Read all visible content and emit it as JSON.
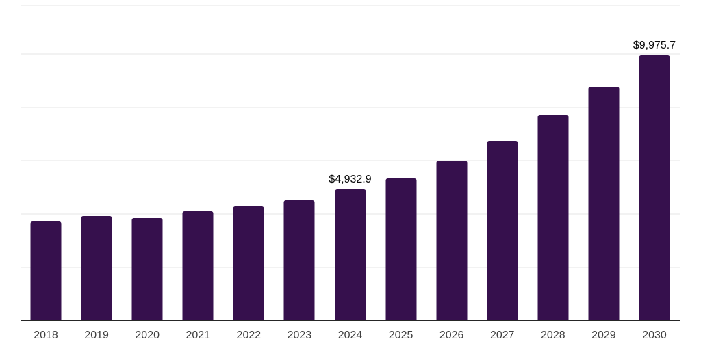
{
  "chart_data": {
    "type": "bar",
    "title": "",
    "xlabel": "",
    "ylabel": "",
    "categories": [
      "2018",
      "2019",
      "2020",
      "2021",
      "2022",
      "2023",
      "2024",
      "2025",
      "2026",
      "2027",
      "2028",
      "2029",
      "2030"
    ],
    "values": [
      3740,
      3940,
      3880,
      4120,
      4300,
      4540,
      4932.9,
      5360,
      6020,
      6770,
      7740,
      8780,
      9975.7
    ],
    "data_labels": {
      "2024": "$4,932.9",
      "2030": "$9,975.7"
    },
    "ylim": [
      0,
      11860
    ],
    "gridline_interval": 2000,
    "grid": "horizontal",
    "legend": "none",
    "colors": {
      "bar": "#36104D",
      "gridline": "#f2f2f2",
      "axis_line": "#262626",
      "tick_label": "#404040",
      "data_label": "#0a0a0a",
      "background": "#ffffff"
    }
  }
}
